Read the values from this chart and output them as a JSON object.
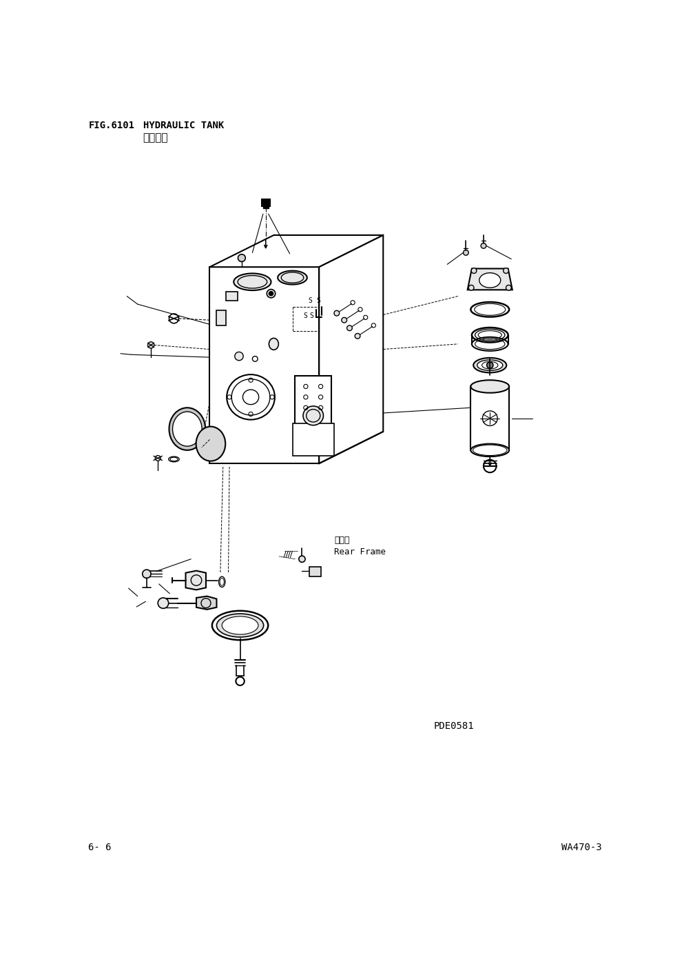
{
  "title_fig": "FIG.6101",
  "title_en": "HYDRAULIC TANK",
  "title_cn": "液压油筱",
  "page_left": "6- 6",
  "page_right": "WA470-3",
  "doc_id": "PDE0581",
  "label_rear_frame_cn": "后车架",
  "label_rear_frame_en": "Rear Frame",
  "bg_color": "#ffffff",
  "line_color": "#000000"
}
